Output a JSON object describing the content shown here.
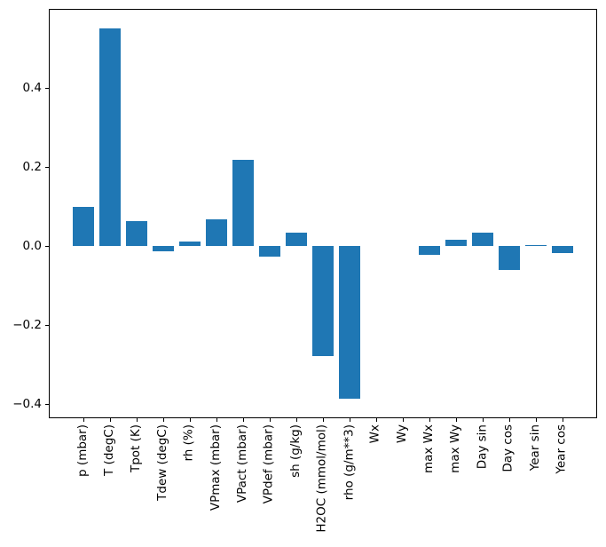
{
  "chart_data": {
    "type": "bar",
    "title": "",
    "xlabel": "",
    "ylabel": "",
    "categories": [
      "p (mbar)",
      "T (degC)",
      "Tpot (K)",
      "Tdew (degC)",
      "rh (%)",
      "VPmax (mbar)",
      "VPact (mbar)",
      "VPdef (mbar)",
      "sh (g/kg)",
      "H2OC (mmol/mol)",
      "rho (g/m**3)",
      "Wx",
      "Wy",
      "max Wx",
      "max Wy",
      "Day sin",
      "Day cos",
      "Year sin",
      "Year cos"
    ],
    "values": [
      0.1,
      0.551,
      0.064,
      -0.013,
      0.012,
      0.069,
      0.22,
      -0.025,
      0.034,
      -0.279,
      -0.386,
      0.0,
      0.0,
      -0.021,
      0.017,
      0.035,
      -0.059,
      0.003,
      -0.017
    ],
    "bar_color": "#1f77b4",
    "ylim": [
      -0.433,
      0.599
    ],
    "yticks": [
      0.4,
      0.2,
      0.0,
      -0.2,
      -0.4
    ],
    "ytick_labels": [
      "0.4",
      "0.2",
      "0.0",
      "−0.2",
      "−0.4"
    ],
    "xtick_rotation_deg": 90,
    "grid": false,
    "legend_position": "none",
    "background_color": "#ffffff",
    "axis_color": "#000000"
  }
}
